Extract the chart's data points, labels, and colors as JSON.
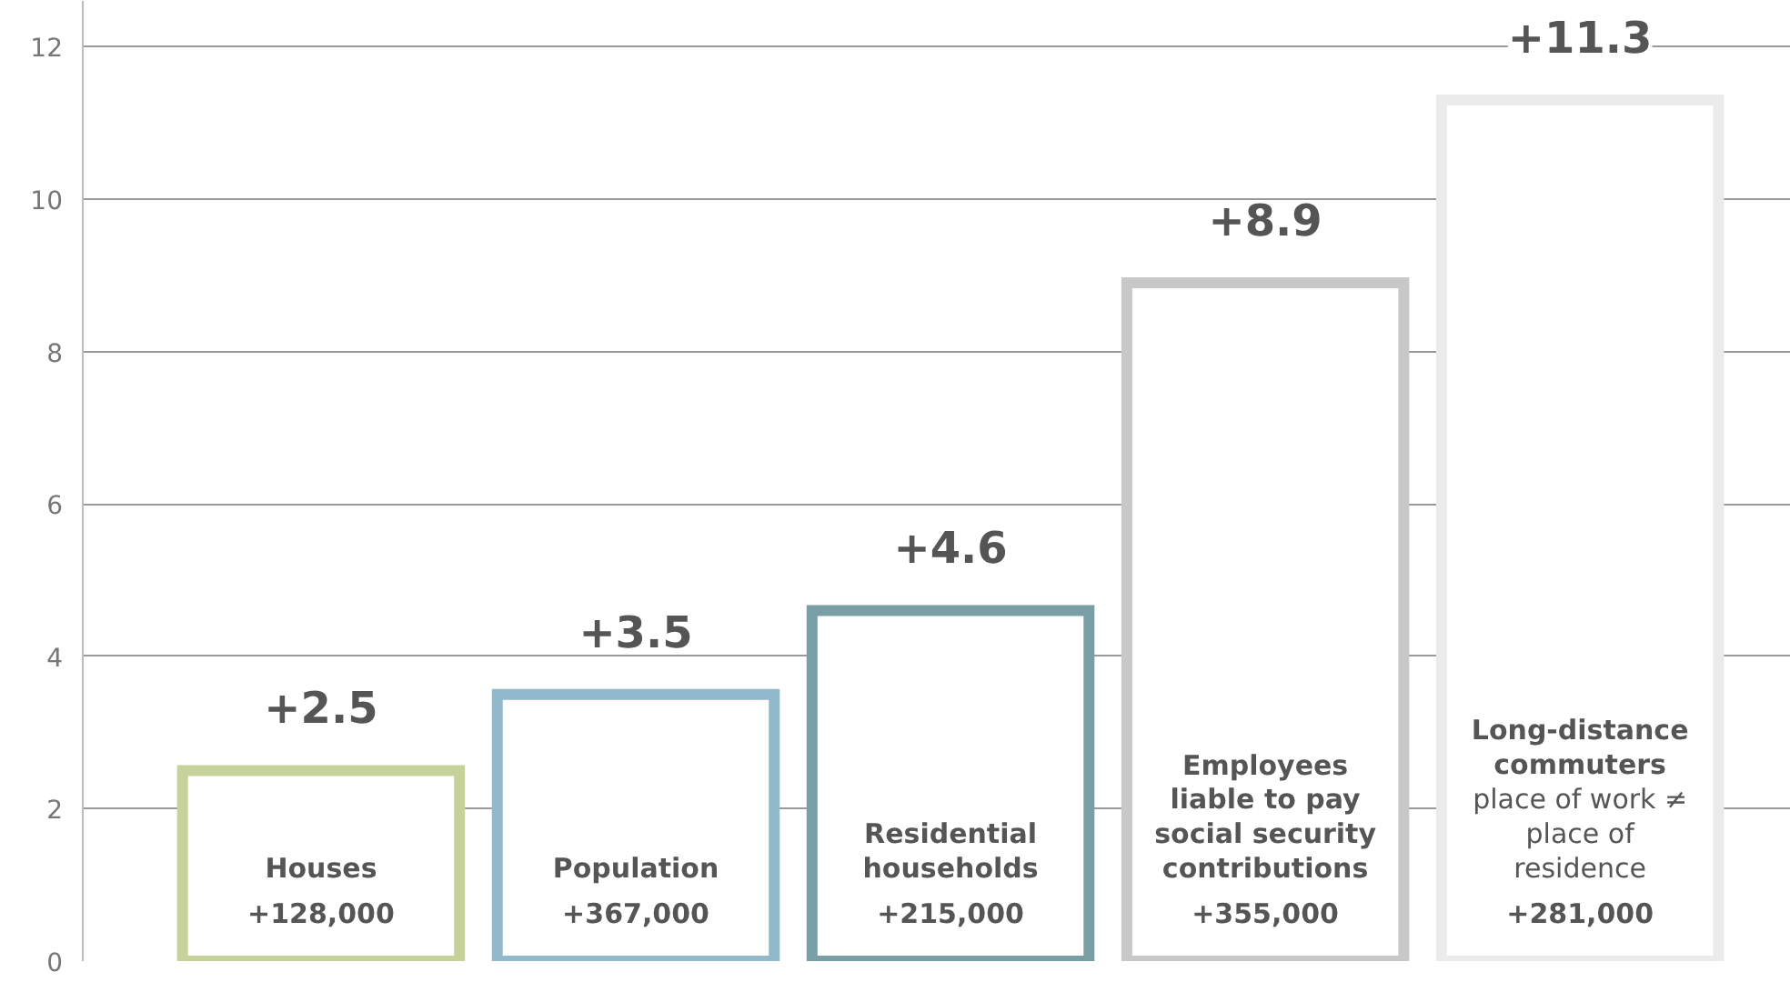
{
  "chart_data": {
    "type": "bar",
    "categories": [
      "Houses",
      "Population",
      "Residential households",
      "Employees liable to pay social security contributions",
      "Long-distance commuters"
    ],
    "values": [
      2.5,
      3.5,
      4.6,
      8.9,
      11.3
    ],
    "colors": [
      "#c5d39a",
      "#92b8cc",
      "#7a9ea6",
      "#c8c8c8",
      "#ebebeb"
    ],
    "value_labels": [
      "+2.5",
      "+3.5",
      "+4.6",
      "+8.9",
      "+11.3"
    ],
    "ylim": [
      0,
      12.6
    ],
    "yticks": [
      0,
      2,
      4,
      6,
      8,
      10,
      12
    ],
    "grid": "y",
    "tick_labels": "y",
    "annotations": [
      "+128,000",
      "+367,000",
      "+215,000",
      "+355,000",
      "+281,000",
      "place of work ≠ place of residence"
    ]
  }
}
